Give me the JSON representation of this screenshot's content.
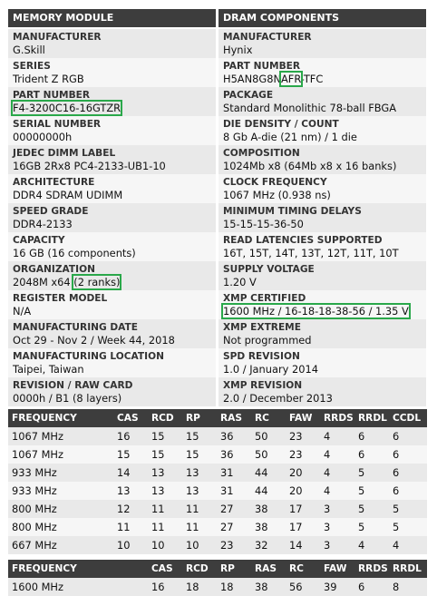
{
  "left": {
    "title": "MEMORY MODULE",
    "rows": [
      {
        "label": "MANUFACTURER",
        "value": "G.Skill"
      },
      {
        "label": "SERIES",
        "value": "Trident Z RGB"
      },
      {
        "label": "PART NUMBER",
        "value": "F4-3200C16-16GTZR"
      },
      {
        "label": "SERIAL NUMBER",
        "value": "00000000h"
      },
      {
        "label": "JEDEC DIMM LABEL",
        "value": "16GB 2Rx8 PC4-2133-UB1-10"
      },
      {
        "label": "ARCHITECTURE",
        "value": "DDR4 SDRAM UDIMM"
      },
      {
        "label": "SPEED GRADE",
        "value": "DDR4-2133"
      },
      {
        "label": "CAPACITY",
        "value": "16 GB (16 components)"
      },
      {
        "label": "ORGANIZATION",
        "value_main": "2048M x64 ",
        "value_hl": "(2 ranks)"
      },
      {
        "label": "REGISTER MODEL",
        "value": "N/A"
      },
      {
        "label": "MANUFACTURING DATE",
        "value": "Oct 29 - Nov 2 / Week 44, 2018"
      },
      {
        "label": "MANUFACTURING LOCATION",
        "value": "Taipei, Taiwan"
      },
      {
        "label": "REVISION / RAW CARD",
        "value": "0000h / B1 (8 layers)"
      }
    ]
  },
  "right": {
    "title": "DRAM COMPONENTS",
    "rows": [
      {
        "label": "MANUFACTURER",
        "value": "Hynix"
      },
      {
        "label": "PART NUMBER",
        "value_pre": "H5AN8G8N",
        "value_hl": "AFR",
        "value_post": "-TFC"
      },
      {
        "label": "PACKAGE",
        "value": "Standard Monolithic 78-ball FBGA"
      },
      {
        "label": "DIE DENSITY / COUNT",
        "value": "8 Gb A-die (21 nm) / 1 die"
      },
      {
        "label": "COMPOSITION",
        "value": "1024Mb x8 (64Mb x8 x 16 banks)"
      },
      {
        "label": "CLOCK FREQUENCY",
        "value": "1067 MHz (0.938 ns)"
      },
      {
        "label": "MINIMUM TIMING DELAYS",
        "value": "15-15-15-36-50"
      },
      {
        "label": "READ LATENCIES SUPPORTED",
        "value": "16T, 15T, 14T, 13T, 12T, 11T, 10T"
      },
      {
        "label": "SUPPLY VOLTAGE",
        "value": "1.20 V"
      },
      {
        "label": "XMP CERTIFIED",
        "value": "1600 MHz / 16-18-18-38-56 / 1.35 V"
      },
      {
        "label": "XMP EXTREME",
        "value": "Not programmed"
      },
      {
        "label": "SPD REVISION",
        "value": "1.0 / January 2014"
      },
      {
        "label": "XMP REVISION",
        "value": "2.0 / December 2013"
      }
    ]
  },
  "jedec_table": {
    "headers": [
      "FREQUENCY",
      "CAS",
      "RCD",
      "RP",
      "RAS",
      "RC",
      "FAW",
      "RRDS",
      "RRDL",
      "CCDL"
    ],
    "rows": [
      [
        "1067 MHz",
        "16",
        "15",
        "15",
        "36",
        "50",
        "23",
        "4",
        "6",
        "6"
      ],
      [
        "1067 MHz",
        "15",
        "15",
        "15",
        "36",
        "50",
        "23",
        "4",
        "6",
        "6"
      ],
      [
        "933 MHz",
        "14",
        "13",
        "13",
        "31",
        "44",
        "20",
        "4",
        "5",
        "6"
      ],
      [
        "933 MHz",
        "13",
        "13",
        "13",
        "31",
        "44",
        "20",
        "4",
        "5",
        "6"
      ],
      [
        "800 MHz",
        "12",
        "11",
        "11",
        "27",
        "38",
        "17",
        "3",
        "5",
        "5"
      ],
      [
        "800 MHz",
        "11",
        "11",
        "11",
        "27",
        "38",
        "17",
        "3",
        "5",
        "5"
      ],
      [
        "667 MHz",
        "10",
        "10",
        "10",
        "23",
        "32",
        "14",
        "3",
        "4",
        "4"
      ]
    ]
  },
  "xmp_table": {
    "headers": [
      "FREQUENCY",
      "CAS",
      "RCD",
      "RP",
      "RAS",
      "RC",
      "FAW",
      "RRDS",
      "RRDL"
    ],
    "rows": [
      [
        "1600 MHz",
        "16",
        "18",
        "18",
        "38",
        "56",
        "39",
        "6",
        "8"
      ]
    ]
  }
}
